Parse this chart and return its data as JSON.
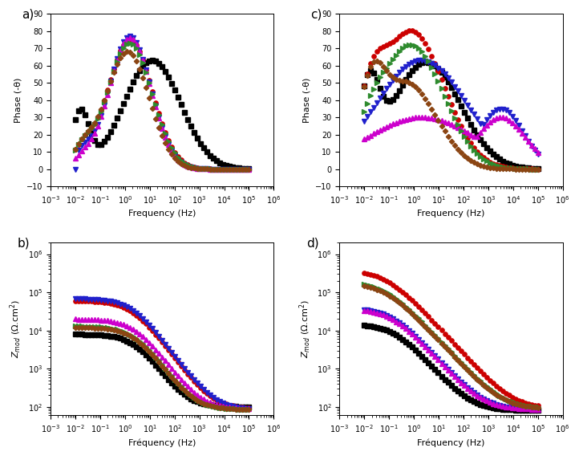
{
  "panel_labels": [
    "a)",
    "b)",
    "c)",
    "d)"
  ],
  "colors": {
    "black": "#000000",
    "red": "#cc0000",
    "blue": "#2020cc",
    "magenta": "#cc00cc",
    "green": "#2e8b2e",
    "brown": "#8b4513"
  },
  "xlabel_phase": "Frequency (Hz)",
  "xlabel_zmod": "Fréquency (Hz)",
  "ylabel_phase": "Phase (-θ)",
  "ylabel_zmod_a": "Z$_{mod}$ (Ω.cm$^2$)",
  "ylabel_zmod_b": "Z$_{mod}$ (Ω.cm$^2$)"
}
